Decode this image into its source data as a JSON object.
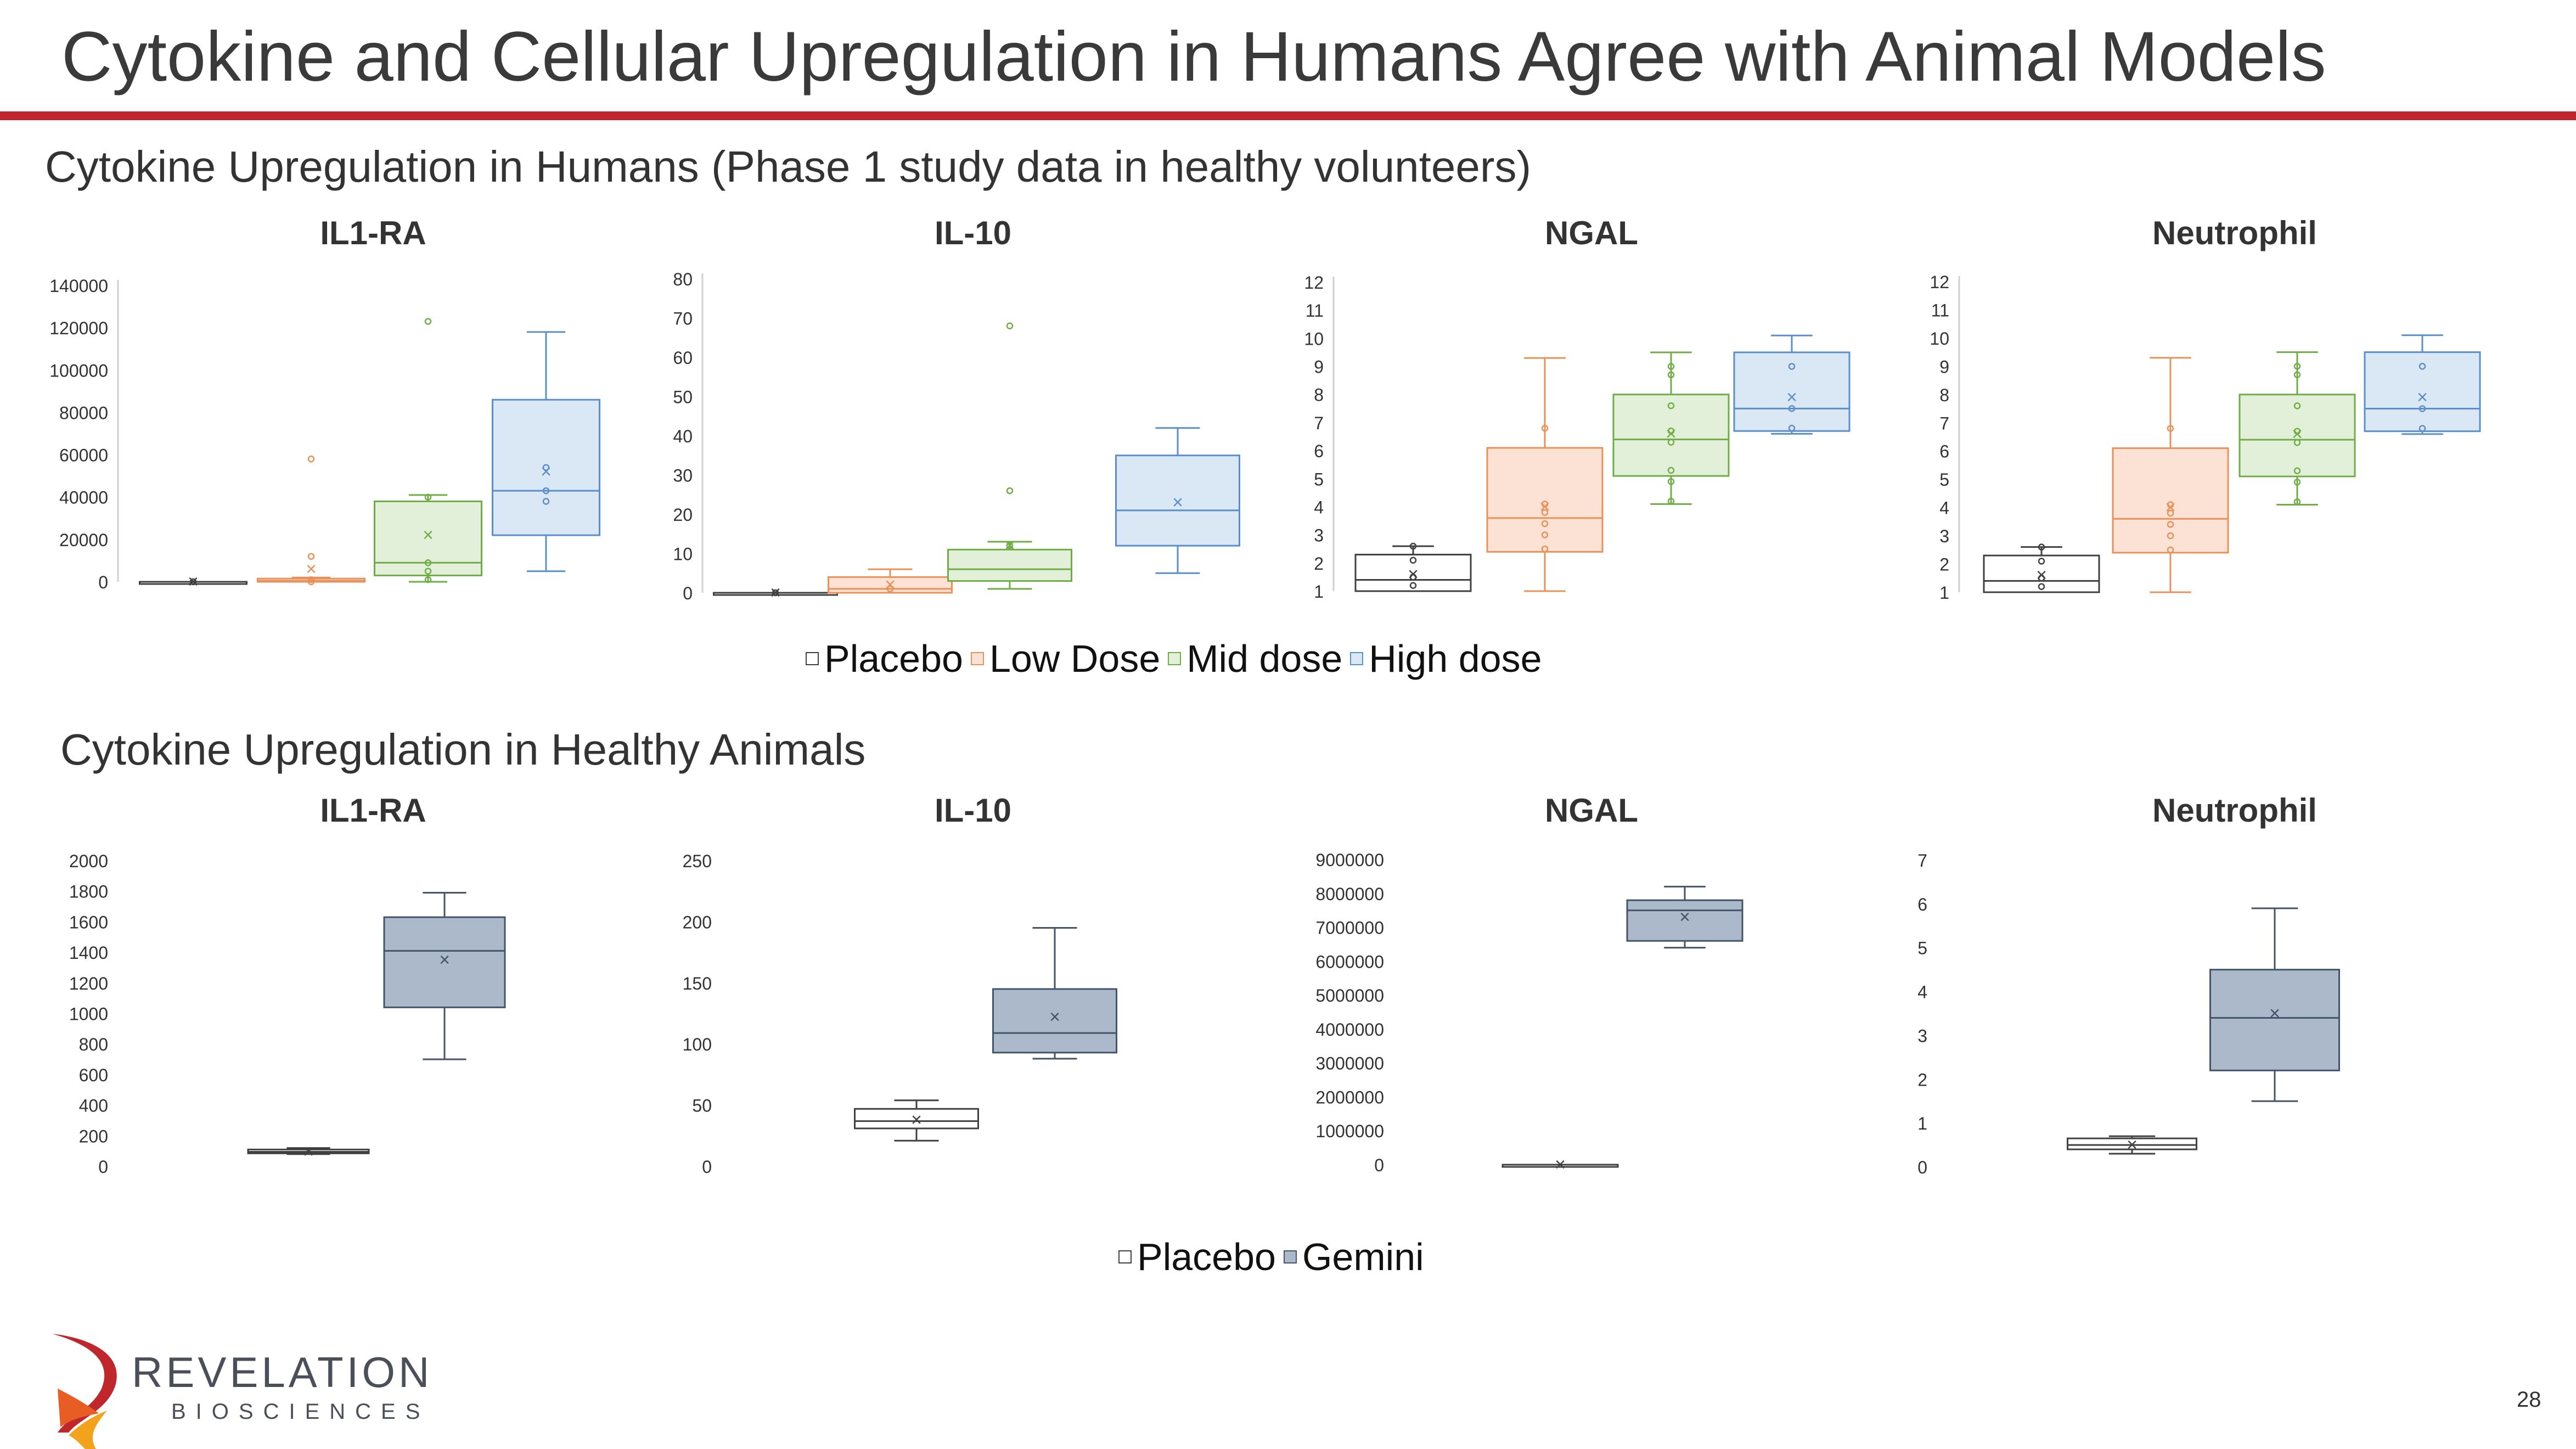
{
  "slide": {
    "title": "Cytokine and Cellular Upregulation in Humans Agree with Animal Models",
    "section_humans": "Cytokine Upregulation in Humans (Phase 1 study data in healthy volunteers)",
    "section_animals": "Cytokine Upregulation in Healthy Animals",
    "page_number": "28",
    "logo_name": "REVELATION",
    "logo_sub": "BIOSCIENCES",
    "brand_red": "#c0272d"
  },
  "legend_humans": [
    {
      "label": "Placebo",
      "color": "#ffffff",
      "stroke": "#404040"
    },
    {
      "label": "Low Dose",
      "color": "#fbe2d5",
      "stroke": "#e8925a"
    },
    {
      "label": "Mid dose",
      "color": "#e2f0d9",
      "stroke": "#70ad47"
    },
    {
      "label": "High dose",
      "color": "#dae8f6",
      "stroke": "#5b8fc9"
    }
  ],
  "legend_animals": [
    {
      "label": "Placebo",
      "color": "#ffffff",
      "stroke": "#404040"
    },
    {
      "label": "Gemini",
      "color": "#acb9ca",
      "stroke": "#44546a"
    }
  ],
  "chart_data": [
    {
      "type": "box",
      "group": "humans",
      "title": "IL1-RA",
      "ylim": [
        0,
        140000
      ],
      "yticks": [
        0,
        20000,
        40000,
        60000,
        80000,
        100000,
        120000,
        140000
      ],
      "categories": [
        "Placebo",
        "Low Dose",
        "Mid dose",
        "High dose"
      ],
      "series": [
        {
          "name": "Placebo",
          "min": 0,
          "q1": 0,
          "median": 0,
          "q3": 0,
          "max": 0,
          "mean": 0,
          "points": [
            0
          ]
        },
        {
          "name": "Low Dose",
          "min": 0,
          "q1": 0,
          "median": 500,
          "q3": 1500,
          "max": 2000,
          "mean": 6000,
          "points": [
            58000,
            12000,
            1000,
            0
          ]
        },
        {
          "name": "Mid dose",
          "min": 0,
          "q1": 3000,
          "median": 9000,
          "q3": 38000,
          "max": 41000,
          "mean": 22000,
          "points": [
            123000,
            40000,
            9000,
            5000,
            1000
          ]
        },
        {
          "name": "High dose",
          "min": 5000,
          "q1": 22000,
          "median": 43000,
          "q3": 86000,
          "max": 118000,
          "mean": 52000,
          "points": [
            54000,
            43000,
            38000
          ]
        }
      ]
    },
    {
      "type": "box",
      "group": "humans",
      "title": "IL-10",
      "ylim": [
        0,
        80
      ],
      "yticks": [
        0,
        10,
        20,
        30,
        40,
        50,
        60,
        70,
        80
      ],
      "categories": [
        "Placebo",
        "Low Dose",
        "Mid dose",
        "High dose"
      ],
      "series": [
        {
          "name": "Placebo",
          "min": 0,
          "q1": 0,
          "median": 0,
          "q3": 0,
          "max": 0,
          "mean": 0,
          "points": [
            0
          ]
        },
        {
          "name": "Low Dose",
          "min": 0,
          "q1": 0,
          "median": 1,
          "q3": 4,
          "max": 6,
          "mean": 2,
          "points": [
            1
          ]
        },
        {
          "name": "Mid dose",
          "min": 1,
          "q1": 3,
          "median": 6,
          "q3": 11,
          "max": 13,
          "mean": 12,
          "points": [
            68,
            26,
            12
          ]
        },
        {
          "name": "High dose",
          "min": 5,
          "q1": 12,
          "median": 21,
          "q3": 35,
          "max": 42,
          "mean": 23,
          "points": []
        }
      ]
    },
    {
      "type": "box",
      "group": "humans",
      "title": "NGAL",
      "ylim": [
        1,
        12
      ],
      "yticks": [
        1,
        2,
        3,
        4,
        5,
        6,
        7,
        8,
        9,
        10,
        11,
        12
      ],
      "categories": [
        "Placebo",
        "Low Dose",
        "Mid dose",
        "High dose"
      ],
      "series": [
        {
          "name": "Placebo",
          "min": 1,
          "q1": 1,
          "median": 1.4,
          "q3": 2.3,
          "max": 2.6,
          "mean": 1.6,
          "points": [
            2.6,
            2.1,
            1.5,
            1.2
          ]
        },
        {
          "name": "Low Dose",
          "min": 1,
          "q1": 2.4,
          "median": 3.6,
          "q3": 6.1,
          "max": 9.3,
          "mean": 4,
          "points": [
            6.8,
            4.1,
            3.8,
            3.4,
            3,
            2.5
          ]
        },
        {
          "name": "Mid dose",
          "min": 4.1,
          "q1": 5.1,
          "median": 6.4,
          "q3": 8,
          "max": 9.5,
          "mean": 6.6,
          "points": [
            9,
            8.7,
            7.6,
            6.7,
            6.3,
            5.3,
            4.9,
            4.2
          ]
        },
        {
          "name": "High dose",
          "min": 6.6,
          "q1": 6.7,
          "median": 7.5,
          "q3": 9.5,
          "max": 10.1,
          "mean": 7.9,
          "points": [
            9,
            7.5,
            6.8
          ]
        }
      ]
    },
    {
      "type": "box",
      "group": "humans",
      "title": "Neutrophil",
      "ylim": [
        1,
        12
      ],
      "yticks": [
        1,
        2,
        3,
        4,
        5,
        6,
        7,
        8,
        9,
        10,
        11,
        12
      ],
      "categories": [
        "Placebo",
        "Low Dose",
        "Mid dose",
        "High dose"
      ],
      "series": [
        {
          "name": "Placebo",
          "min": 1,
          "q1": 1,
          "median": 1.4,
          "q3": 2.3,
          "max": 2.6,
          "mean": 1.6,
          "points": [
            2.6,
            2.1,
            1.5,
            1.2
          ]
        },
        {
          "name": "Low Dose",
          "min": 1,
          "q1": 2.4,
          "median": 3.6,
          "q3": 6.1,
          "max": 9.3,
          "mean": 4,
          "points": [
            6.8,
            4.1,
            3.8,
            3.4,
            3,
            2.5
          ]
        },
        {
          "name": "Mid dose",
          "min": 4.1,
          "q1": 5.1,
          "median": 6.4,
          "q3": 8,
          "max": 9.5,
          "mean": 6.6,
          "points": [
            9,
            8.7,
            7.6,
            6.7,
            6.3,
            5.3,
            4.9,
            4.2
          ]
        },
        {
          "name": "High dose",
          "min": 6.6,
          "q1": 6.7,
          "median": 7.5,
          "q3": 9.5,
          "max": 10.1,
          "mean": 7.9,
          "points": [
            9,
            7.5,
            6.8
          ]
        }
      ]
    },
    {
      "type": "box",
      "group": "animals",
      "title": "IL1-RA",
      "ylim": [
        0,
        2000
      ],
      "yticks": [
        0,
        200,
        400,
        600,
        800,
        1000,
        1200,
        1400,
        1600,
        1800,
        2000
      ],
      "categories": [
        "Placebo",
        "Gemini"
      ],
      "series": [
        {
          "name": "Placebo",
          "min": 80,
          "q1": 85,
          "median": 95,
          "q3": 110,
          "max": 120,
          "mean": 95,
          "points": []
        },
        {
          "name": "Gemini",
          "min": 700,
          "q1": 1040,
          "median": 1410,
          "q3": 1630,
          "max": 1790,
          "mean": 1350,
          "points": []
        }
      ]
    },
    {
      "type": "box",
      "group": "animals",
      "title": "IL-10",
      "ylim": [
        0,
        250
      ],
      "yticks": [
        0,
        50,
        100,
        150,
        200,
        250
      ],
      "categories": [
        "Placebo",
        "Gemini"
      ],
      "series": [
        {
          "name": "Placebo",
          "min": 21,
          "q1": 31,
          "median": 37,
          "q3": 47,
          "max": 54,
          "mean": 38,
          "points": []
        },
        {
          "name": "Gemini",
          "min": 88,
          "q1": 93,
          "median": 109,
          "q3": 145,
          "max": 195,
          "mean": 122,
          "points": []
        }
      ]
    },
    {
      "type": "box",
      "group": "animals",
      "title": "NGAL",
      "ylim": [
        0,
        9000000
      ],
      "yticks": [
        0,
        1000000,
        2000000,
        3000000,
        4000000,
        5000000,
        6000000,
        7000000,
        8000000,
        9000000
      ],
      "categories": [
        "Placebo",
        "Gemini"
      ],
      "series": [
        {
          "name": "Placebo",
          "min": 0,
          "q1": 0,
          "median": 0,
          "q3": 0,
          "max": 0,
          "mean": 0,
          "points": []
        },
        {
          "name": "Gemini",
          "min": 6400000,
          "q1": 6600000,
          "median": 7500000,
          "q3": 7800000,
          "max": 8200000,
          "mean": 7300000,
          "points": []
        }
      ]
    },
    {
      "type": "box",
      "group": "animals",
      "title": "Neutrophil",
      "ylim": [
        0,
        7
      ],
      "yticks": [
        0,
        1,
        2,
        3,
        4,
        5,
        6,
        7
      ],
      "categories": [
        "Placebo",
        "Gemini"
      ],
      "series": [
        {
          "name": "Placebo",
          "min": 0.3,
          "q1": 0.4,
          "median": 0.5,
          "q3": 0.65,
          "max": 0.7,
          "mean": 0.5,
          "points": []
        },
        {
          "name": "Gemini",
          "min": 1.5,
          "q1": 2.2,
          "median": 3.4,
          "q3": 4.5,
          "max": 5.9,
          "mean": 3.5,
          "points": []
        }
      ]
    }
  ]
}
